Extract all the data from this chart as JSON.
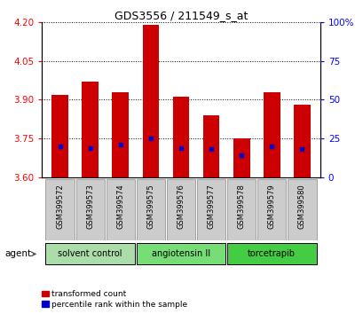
{
  "title": "GDS3556 / 211549_s_at",
  "samples": [
    "GSM399572",
    "GSM399573",
    "GSM399574",
    "GSM399575",
    "GSM399576",
    "GSM399577",
    "GSM399578",
    "GSM399579",
    "GSM399580"
  ],
  "transformed_counts": [
    3.92,
    3.97,
    3.93,
    4.19,
    3.91,
    3.84,
    3.75,
    3.93,
    3.88
  ],
  "percentile_ranks": [
    20,
    19,
    21,
    25,
    19,
    18,
    14,
    20,
    18
  ],
  "ylim": [
    3.6,
    4.2
  ],
  "y2lim": [
    0,
    100
  ],
  "yticks": [
    3.6,
    3.75,
    3.9,
    4.05,
    4.2
  ],
  "y2ticks": [
    0,
    25,
    50,
    75,
    100
  ],
  "bar_color": "#cc0000",
  "dot_color": "#0000cc",
  "bar_width": 0.55,
  "groups": [
    {
      "label": "solvent control",
      "indices": [
        0,
        1,
        2
      ],
      "color": "#aaddaa"
    },
    {
      "label": "angiotensin II",
      "indices": [
        3,
        4,
        5
      ],
      "color": "#77dd77"
    },
    {
      "label": "torcetrapib",
      "indices": [
        6,
        7,
        8
      ],
      "color": "#44cc44"
    }
  ],
  "group_row_label": "agent",
  "legend_items": [
    {
      "label": "transformed count",
      "color": "#cc0000"
    },
    {
      "label": "percentile rank within the sample",
      "color": "#0000cc"
    }
  ],
  "background_color": "#ffffff",
  "plot_bg_color": "#ffffff",
  "sample_box_color": "#cccccc",
  "sample_box_edge_color": "#888888"
}
